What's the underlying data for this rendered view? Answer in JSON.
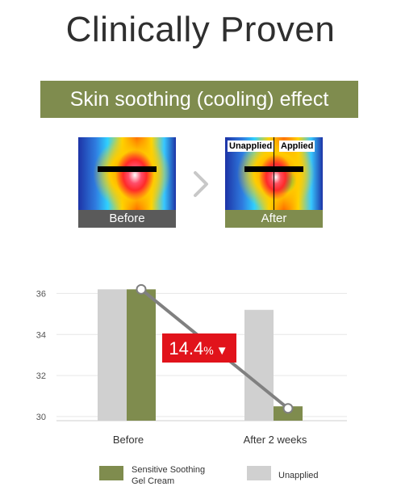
{
  "page_title": "Clinically Proven",
  "section_title": "Skin soothing (cooling) effect",
  "images": {
    "before_caption": "Before",
    "after_caption": "After",
    "tag_unapplied": "Unapplied",
    "tag_applied": "Applied",
    "arrow_icon": "chevron-right-icon"
  },
  "chart_data": {
    "type": "bar",
    "categories": [
      "Before",
      "After 2 weeks"
    ],
    "series": [
      {
        "name": "Unapplied",
        "values": [
          36.2,
          35.2
        ],
        "color": "#d0d0d0"
      },
      {
        "name": "Sensitive Soothing Gel Cream",
        "values": [
          36.2,
          30.5
        ],
        "color": "#7f8c4e"
      }
    ],
    "line_series": {
      "values": [
        36.2,
        30.4
      ],
      "color": "#808080"
    },
    "yticks": [
      30,
      32,
      34,
      36
    ],
    "ylim": [
      29.8,
      37
    ],
    "grid": true,
    "annotation": {
      "value": "14.4",
      "unit": "%",
      "symbol": "▼",
      "color": "#e1131b"
    },
    "legend": {
      "items": [
        {
          "label_line1": "Sensitive Soothing",
          "label_line2": "Gel Cream",
          "color": "#7f8c4e"
        },
        {
          "label_line1": "Unapplied",
          "label_line2": "",
          "color": "#d0d0d0"
        }
      ],
      "position": "bottom"
    }
  }
}
